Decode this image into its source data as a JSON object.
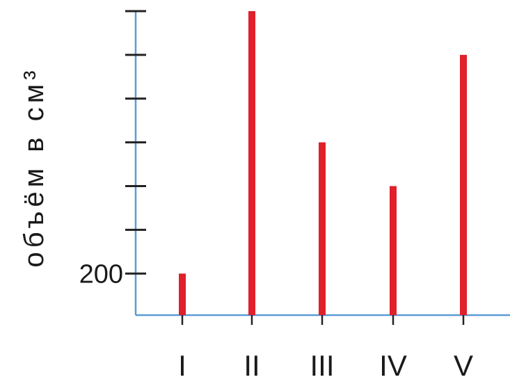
{
  "chart_data": {
    "type": "bar",
    "categories": [
      "I",
      "II",
      "III",
      "IV",
      "V"
    ],
    "values": [
      200,
      800,
      500,
      400,
      700
    ],
    "ylabel": "объём в см³",
    "ylim": [
      105,
      800
    ],
    "ytick_values": [
      200,
      300,
      400,
      500,
      600,
      700,
      800
    ],
    "ytick_labels": [
      "200",
      "",
      "",
      "",
      "",
      "",
      ""
    ],
    "colors": {
      "bar": "#e0202a",
      "axis": "#5b9bd5",
      "tick": "#222222"
    }
  }
}
